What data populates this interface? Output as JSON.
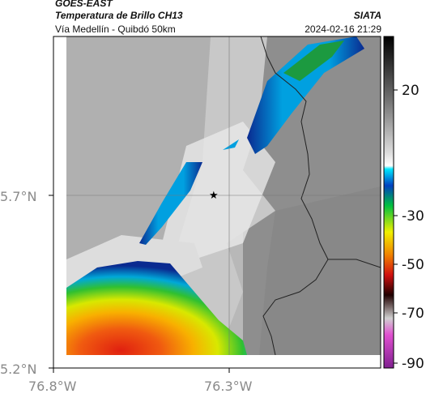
{
  "header": {
    "satellite": "GOES-EAST",
    "product": "Temperatura de Brillo CH13",
    "region": "Vía Medellín - Quibdó 50km",
    "org": "SIATA",
    "datetime": "2024-02-16 21:29"
  },
  "axes": {
    "lat_ticks": [
      "5.7°N",
      "5.2°N"
    ],
    "lon_ticks": [
      "76.8°W",
      "76.3°W"
    ]
  },
  "colorbar": {
    "ticks": [
      "20",
      "-30",
      "-50",
      "-70",
      "-90"
    ]
  },
  "marker": {
    "symbol": "★",
    "name": "reference-point"
  }
}
